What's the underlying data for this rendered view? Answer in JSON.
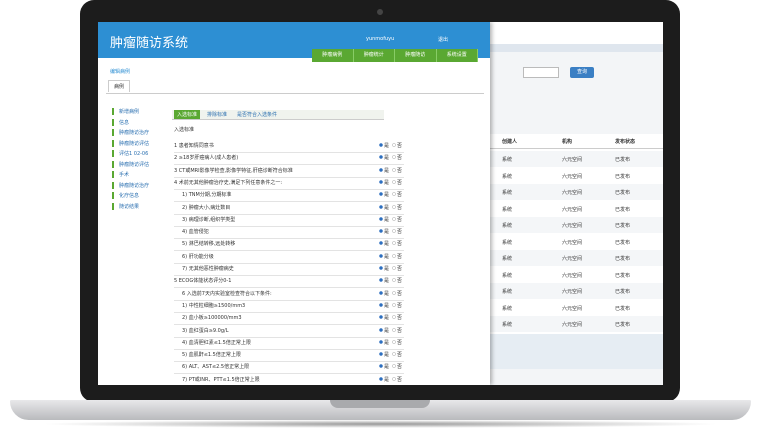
{
  "header": {
    "title": "肿瘤随访系统",
    "user": "yunmofuyu",
    "logout": "退出"
  },
  "nav": [
    "肿瘤病例",
    "肿瘤统计",
    "肿瘤随访",
    "系统设置"
  ],
  "breadcrumb": "编辑病例",
  "tab": "病例",
  "sidebar": [
    "新增病例",
    "信息",
    "肿瘤随访治疗",
    "肿瘤随访评估",
    "评估1 02-06",
    "肿瘤随访评估",
    "手术",
    "肿瘤随访治疗",
    "化疗信息",
    "随访结果"
  ],
  "form": {
    "tabs": [
      "入选标准",
      "排除标准",
      "是否符合入选条件"
    ],
    "heading": "入选标准",
    "yes": "是",
    "no": "否",
    "questions": [
      "1 患者知情同意书",
      "2 ≥18岁肝癌病人(成人患者)",
      "3 CT或MRI影像学检查,影像学特征,肝癌诊断符合标准",
      "4 术前无其他肿瘤治疗史,满足下列任意条件之一:",
      "1) TNM分期,分期标准",
      "2) 肿瘤大小,病灶数目",
      "3) 病理诊断,组织学类型",
      "4) 血管侵犯",
      "5) 淋巴结转移,远处转移",
      "6) 肝功能分级",
      "7) 无其他恶性肿瘤病史",
      "5 ECOG体能状态评分0-1",
      "6 入选前7天内实验室检查符合以下条件:",
      "1) 中性粒细胞≥1500/mm3",
      "2) 血小板≥100000/mm3",
      "3) 血红蛋白≥9.0g/L",
      "4) 血清胆红素≤1.5倍正常上限",
      "5) 血肌酐≤1.5倍正常上限",
      "6) ALT、AST≤2.5倍正常上限",
      "7) PT或INR、PTT≤1.5倍正常上限"
    ]
  },
  "panel": {
    "button": "查询",
    "columns": [
      "创建人",
      "机构",
      "发布状态"
    ],
    "rows": [
      [
        "系统",
        "六元空间",
        "已发布"
      ],
      [
        "系统",
        "六元空间",
        "已发布"
      ],
      [
        "系统",
        "六元空间",
        "已发布"
      ],
      [
        "系统",
        "六元空间",
        "已发布"
      ],
      [
        "系统",
        "六元空间",
        "已发布"
      ],
      [
        "系统",
        "六元空间",
        "已发布"
      ],
      [
        "系统",
        "六元空间",
        "已发布"
      ],
      [
        "系统",
        "六元空间",
        "已发布"
      ],
      [
        "系统",
        "六元空间",
        "已发布"
      ],
      [
        "系统",
        "六元空间",
        "已发布"
      ],
      [
        "系统",
        "六元空间",
        "已发布"
      ]
    ]
  }
}
